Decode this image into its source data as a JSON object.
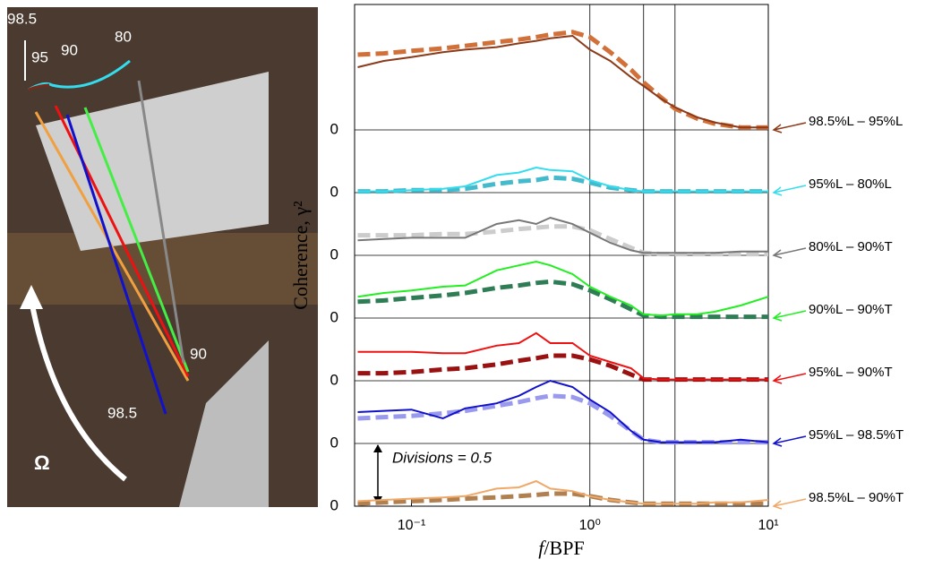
{
  "photo": {
    "labels": [
      "98.5",
      "95",
      "90",
      "80",
      "90",
      "98.5",
      "Ω"
    ]
  },
  "chart_data": {
    "type": "line",
    "y_label": "Coherence, γ²",
    "x_label_italic": "f",
    "x_label": "/BPF",
    "annotation": "Divisions = 0.5",
    "log_x": true,
    "xlim": [
      0.048,
      10
    ],
    "xticks": [
      {
        "value": 0.1,
        "label": "10⁻¹"
      },
      {
        "value": 1,
        "label": "10⁰"
      },
      {
        "value": 10,
        "label": "10¹"
      }
    ],
    "vlines": [
      1,
      2,
      3
    ],
    "ylim": [
      0,
      4
    ],
    "yticks": [
      0,
      {
        "value": 0.5,
        "label": "0"
      },
      {
        "value": 1.0,
        "label": "0"
      },
      {
        "value": 1.5,
        "label": "0"
      },
      {
        "value": 2.0,
        "label": "0"
      },
      {
        "value": 2.5,
        "label": "0"
      },
      {
        "value": 3.0,
        "label": "0"
      }
    ],
    "x": [
      0.05,
      0.07,
      0.1,
      0.15,
      0.2,
      0.3,
      0.4,
      0.5,
      0.6,
      0.8,
      1.0,
      1.3,
      1.7,
      2.0,
      2.5,
      3,
      4,
      5,
      7,
      10
    ],
    "panels": [
      {
        "label": "98.5%L – 95%L",
        "measured": {
          "color": "#8b3a1a",
          "values": [
            0.5,
            0.55,
            0.58,
            0.62,
            0.64,
            0.66,
            0.69,
            0.71,
            0.73,
            0.75,
            0.64,
            0.55,
            0.42,
            0.35,
            0.25,
            0.18,
            0.1,
            0.06,
            0.02,
            0.02
          ]
        },
        "model": {
          "color": "#d2703a",
          "values": [
            0.6,
            0.61,
            0.63,
            0.65,
            0.67,
            0.7,
            0.72,
            0.74,
            0.76,
            0.78,
            0.74,
            0.62,
            0.48,
            0.38,
            0.26,
            0.17,
            0.09,
            0.05,
            0.02,
            0.02
          ]
        }
      },
      {
        "label": "95%L – 80%L",
        "measured": {
          "color": "#33ddee",
          "values": [
            0.01,
            0.01,
            0.02,
            0.03,
            0.05,
            0.14,
            0.16,
            0.2,
            0.18,
            0.17,
            0.1,
            0.05,
            0.02,
            0.01,
            0.01,
            0.01,
            0.01,
            0.01,
            0.01,
            0.01
          ]
        },
        "model": {
          "color": "#44bbcc",
          "values": [
            0.01,
            0.01,
            0.02,
            0.02,
            0.03,
            0.07,
            0.09,
            0.1,
            0.12,
            0.11,
            0.08,
            0.04,
            0.02,
            0.01,
            0.01,
            0.01,
            0.01,
            0.01,
            0.01,
            0.01
          ]
        }
      },
      {
        "label": "80%L – 90%T",
        "measured": {
          "color": "#777777",
          "values": [
            0.12,
            0.13,
            0.14,
            0.14,
            0.14,
            0.25,
            0.28,
            0.25,
            0.3,
            0.25,
            0.18,
            0.1,
            0.04,
            0.02,
            0.02,
            0.02,
            0.02,
            0.02,
            0.03,
            0.03
          ]
        },
        "model": {
          "color": "#cccccc",
          "values": [
            0.16,
            0.16,
            0.16,
            0.17,
            0.17,
            0.19,
            0.21,
            0.22,
            0.23,
            0.23,
            0.2,
            0.13,
            0.06,
            0.02,
            0.01,
            0.01,
            0.01,
            0.01,
            0.01,
            0.01
          ]
        }
      },
      {
        "label": "90%L – 90%T",
        "measured": {
          "color": "#22ee22",
          "values": [
            0.17,
            0.2,
            0.22,
            0.25,
            0.26,
            0.38,
            0.42,
            0.45,
            0.42,
            0.35,
            0.25,
            0.17,
            0.1,
            0.03,
            0.02,
            0.03,
            0.03,
            0.05,
            0.1,
            0.17
          ]
        },
        "model": {
          "color": "#2e7d55",
          "values": [
            0.13,
            0.14,
            0.16,
            0.18,
            0.2,
            0.24,
            0.26,
            0.28,
            0.29,
            0.27,
            0.22,
            0.15,
            0.07,
            0.02,
            0.01,
            0.01,
            0.01,
            0.01,
            0.01,
            0.01
          ]
        }
      },
      {
        "label": "95%L – 90%T",
        "measured": {
          "color": "#ee1111",
          "values": [
            0.23,
            0.23,
            0.23,
            0.22,
            0.22,
            0.28,
            0.3,
            0.38,
            0.3,
            0.3,
            0.2,
            0.15,
            0.1,
            0.02,
            0.01,
            0.01,
            0.01,
            0.01,
            0.01,
            0.01
          ]
        },
        "model": {
          "color": "#991111",
          "values": [
            0.06,
            0.06,
            0.07,
            0.09,
            0.1,
            0.13,
            0.16,
            0.18,
            0.2,
            0.2,
            0.17,
            0.12,
            0.05,
            0.01,
            0.01,
            0.01,
            0.01,
            0.01,
            0.01,
            0.01
          ]
        }
      },
      {
        "label": "95%L – 98.5%T",
        "measured": {
          "color": "#1111cc",
          "values": [
            0.25,
            0.26,
            0.27,
            0.2,
            0.28,
            0.32,
            0.38,
            0.45,
            0.5,
            0.45,
            0.35,
            0.25,
            0.1,
            0.03,
            0.01,
            0.01,
            0.01,
            0.01,
            0.03,
            0.01
          ]
        },
        "model": {
          "color": "#9999ee",
          "values": [
            0.2,
            0.21,
            0.22,
            0.24,
            0.26,
            0.3,
            0.33,
            0.36,
            0.38,
            0.37,
            0.32,
            0.22,
            0.1,
            0.03,
            0.01,
            0.01,
            0.01,
            0.01,
            0.01,
            0.01
          ]
        }
      },
      {
        "label": "98.5%L – 90%T",
        "measured": {
          "color": "#f0a868",
          "values": [
            0.04,
            0.05,
            0.06,
            0.07,
            0.08,
            0.14,
            0.15,
            0.2,
            0.14,
            0.12,
            0.08,
            0.05,
            0.03,
            0.02,
            0.02,
            0.02,
            0.02,
            0.03,
            0.03,
            0.05
          ]
        },
        "model": {
          "color": "#b08050",
          "values": [
            0.02,
            0.03,
            0.04,
            0.05,
            0.06,
            0.07,
            0.08,
            0.09,
            0.1,
            0.1,
            0.08,
            0.05,
            0.03,
            0.02,
            0.02,
            0.02,
            0.02,
            0.02,
            0.02,
            0.02
          ]
        }
      }
    ]
  }
}
